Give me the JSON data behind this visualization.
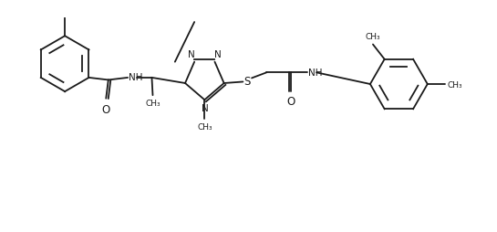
{
  "bg_color": "#ffffff",
  "line_color": "#1a1a1a",
  "lw": 1.3,
  "fs": 7.5,
  "xlim": [
    0,
    10.5
  ],
  "ylim": [
    0,
    5.0
  ]
}
